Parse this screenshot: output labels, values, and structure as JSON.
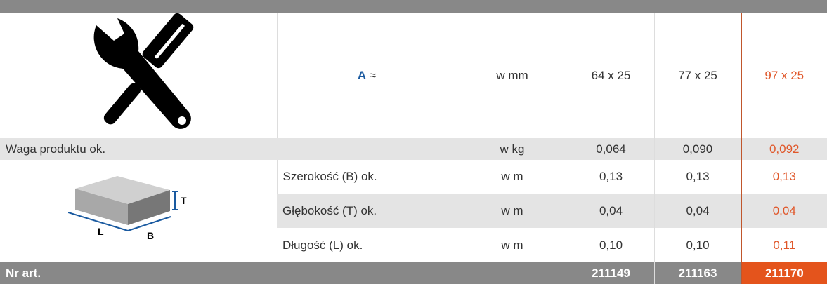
{
  "header": {
    "label_a": "A",
    "approx": "≈",
    "unit": "w mm",
    "sizes": [
      "64 x 25",
      "77 x 25",
      "97 x 25"
    ]
  },
  "weight": {
    "label": "Waga produktu ok.",
    "unit": "w kg",
    "values": [
      "0,064",
      "0,090",
      "0,092"
    ]
  },
  "dimensions": [
    {
      "label": "Szerokość (B) ok.",
      "unit": "w m",
      "values": [
        "0,13",
        "0,13",
        "0,13"
      ]
    },
    {
      "label": "Głębokość (T) ok.",
      "unit": "w m",
      "values": [
        "0,04",
        "0,04",
        "0,04"
      ]
    },
    {
      "label": "Długość (L) ok.",
      "unit": "w m",
      "values": [
        "0,10",
        "0,10",
        "0,11"
      ]
    }
  ],
  "diagram": {
    "labels": {
      "l": "L",
      "b": "B",
      "t": "T"
    }
  },
  "footer": {
    "label": "Nr art.",
    "articles": [
      "211149",
      "211163",
      "211170"
    ]
  },
  "colors": {
    "highlight": "#e4541c",
    "accent_blue": "#1a5aa0",
    "bar_gray": "#888888"
  }
}
